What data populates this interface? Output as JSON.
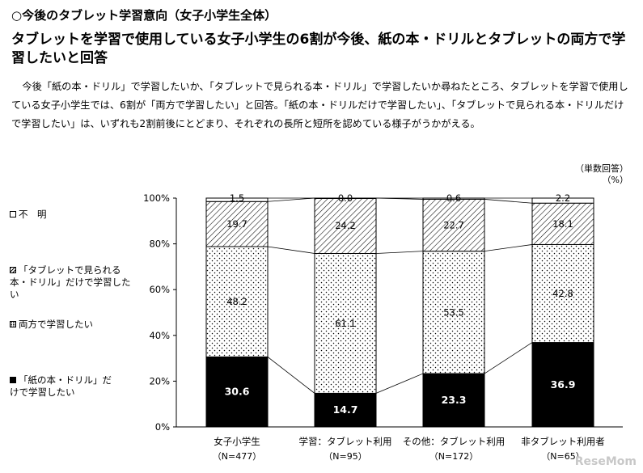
{
  "header": {
    "section_title": "○今後のタブレット学習意向（女子小学生全体）",
    "headline": "タブレットを学習で使用している女子小学生の6割が今後、紙の本・ドリルとタブレットの両方で学習したいと回答",
    "body": "今後「紙の本・ドリル」で学習したいか、「タブレットで見られる本・ドリル」で学習したいか尋ねたところ、タブレットを学習で使用している女子小学生では、6割が「両方で学習したい」と回答。「紙の本・ドリルだけで学習したい」、「タブレットで見られる本・ドリルだけで学習したい」は、いずれも2割前後にとどまり、それぞれの長所と短所を認めている様子がうかがえる。"
  },
  "unit_note": {
    "line1": "（単数回答）",
    "line2": "（%）"
  },
  "watermark": "ReseMom",
  "chart_data": {
    "type": "bar",
    "stacked": true,
    "percent": true,
    "categories": [
      "女子小学生",
      "学習：タブレット利用",
      "その他：タブレット利用",
      "非タブレット利用者"
    ],
    "category_n": [
      "（N=477）",
      "（N=95）",
      "（N=172）",
      "（N=65）"
    ],
    "ylim": [
      0,
      100
    ],
    "yticks": [
      "0%",
      "20%",
      "40%",
      "60%",
      "80%",
      "100%"
    ],
    "grid": false,
    "legend_position": "left",
    "series": [
      {
        "name": "「紙の本・ドリル」だけで学習したい",
        "values": [
          30.6,
          14.7,
          23.3,
          36.9
        ],
        "fill": "#000000",
        "label_color": "#ffffff"
      },
      {
        "name": "両方で学習したい",
        "values": [
          48.2,
          61.1,
          53.5,
          42.8
        ],
        "fill": "dots",
        "label_color": "#000000"
      },
      {
        "name": "「タブレットで見られる本・ドリル」だけで学習したい",
        "values": [
          19.7,
          24.2,
          22.7,
          18.1
        ],
        "fill": "hatch",
        "label_color": "#000000"
      },
      {
        "name": "不　明",
        "values": [
          1.5,
          0.0,
          0.6,
          2.2
        ],
        "fill": "#ffffff",
        "label_color": "#000000"
      }
    ],
    "value_labels": [
      [
        "30.6",
        "14.7",
        "23.3",
        "36.9"
      ],
      [
        "48.2",
        "61.1",
        "53.5",
        "42.8"
      ],
      [
        "19.7",
        "24.2",
        "22.7",
        "18.1"
      ],
      [
        "1.5",
        "0.0",
        "0.6",
        "2.2"
      ]
    ]
  }
}
